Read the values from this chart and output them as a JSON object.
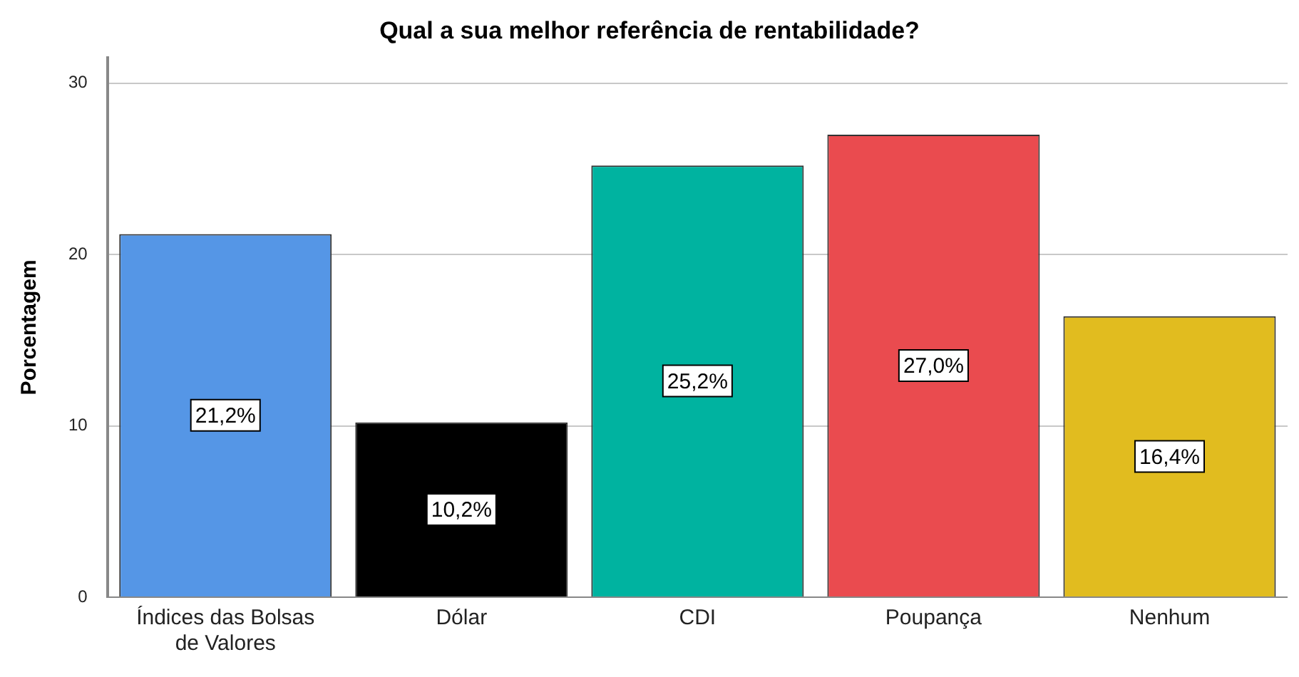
{
  "chart_data": {
    "type": "bar",
    "title": "Qual a sua melhor referência de rentabilidade?",
    "ylabel": "Porcentagem",
    "categories": [
      "Índices das Bolsas\nde Valores",
      "Dólar",
      "CDI",
      "Poupança",
      "Nenhum"
    ],
    "values": [
      21.2,
      10.2,
      25.2,
      27.0,
      16.4
    ],
    "colors": [
      "#5596e6",
      "#000000",
      "#00b3a0",
      "#ea4b4f",
      "#e1bc1f"
    ],
    "value_labels": [
      "21,2%",
      "10,2%",
      "25,2%",
      "27,0%",
      "16,4%"
    ],
    "ylim": [
      0,
      31.5
    ],
    "yticks": [
      0,
      10,
      20,
      30
    ],
    "grid": "y"
  }
}
